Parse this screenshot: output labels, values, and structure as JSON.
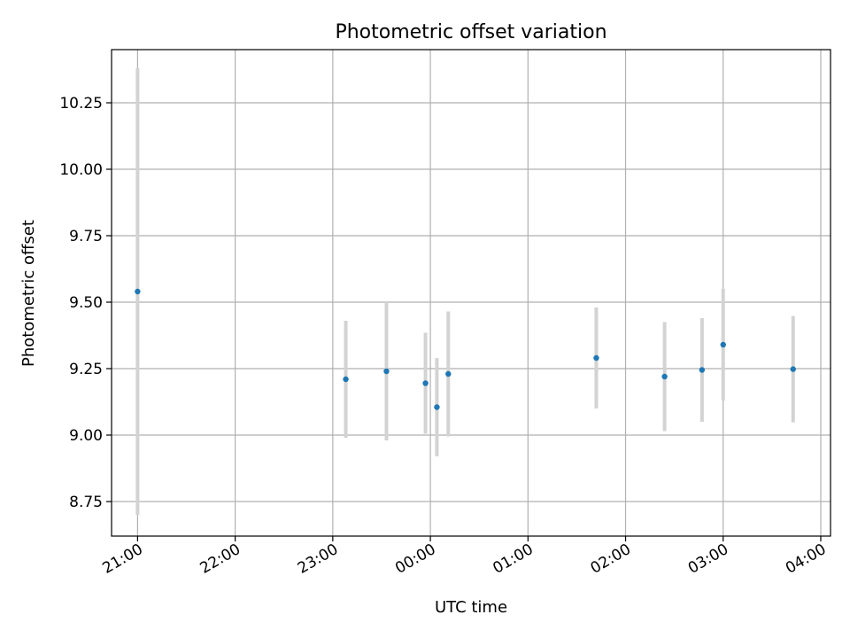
{
  "chart_data": {
    "type": "scatter",
    "title": "Photometric offset variation",
    "xlabel": "UTC time",
    "ylabel": "Photometric offset",
    "grid": true,
    "x_ticks": [
      "21:00",
      "22:00",
      "23:00",
      "00:00",
      "01:00",
      "02:00",
      "03:00",
      "04:00"
    ],
    "y_ticks": [
      "8.75",
      "9.00",
      "9.25",
      "9.50",
      "9.75",
      "10.00",
      "10.25"
    ],
    "colors": {
      "point": "#1f77b4",
      "errorbar": "#d3d3d3",
      "grid": "#b0b0b0"
    },
    "series": [
      {
        "points": [
          {
            "x": "21:00",
            "y": 9.54,
            "err": 0.84
          },
          {
            "x": "23:08",
            "y": 9.21,
            "err": 0.22
          },
          {
            "x": "23:33",
            "y": 9.24,
            "err": 0.26
          },
          {
            "x": "23:57",
            "y": 9.195,
            "err": 0.19
          },
          {
            "x": "00:04",
            "y": 9.105,
            "err": 0.185
          },
          {
            "x": "00:11",
            "y": 9.23,
            "err": 0.235
          },
          {
            "x": "01:42",
            "y": 9.29,
            "err": 0.19
          },
          {
            "x": "02:24",
            "y": 9.22,
            "err": 0.205
          },
          {
            "x": "02:47",
            "y": 9.245,
            "err": 0.195
          },
          {
            "x": "03:00",
            "y": 9.34,
            "err": 0.21
          },
          {
            "x": "03:43",
            "y": 9.248,
            "err": 0.2
          }
        ]
      }
    ]
  }
}
